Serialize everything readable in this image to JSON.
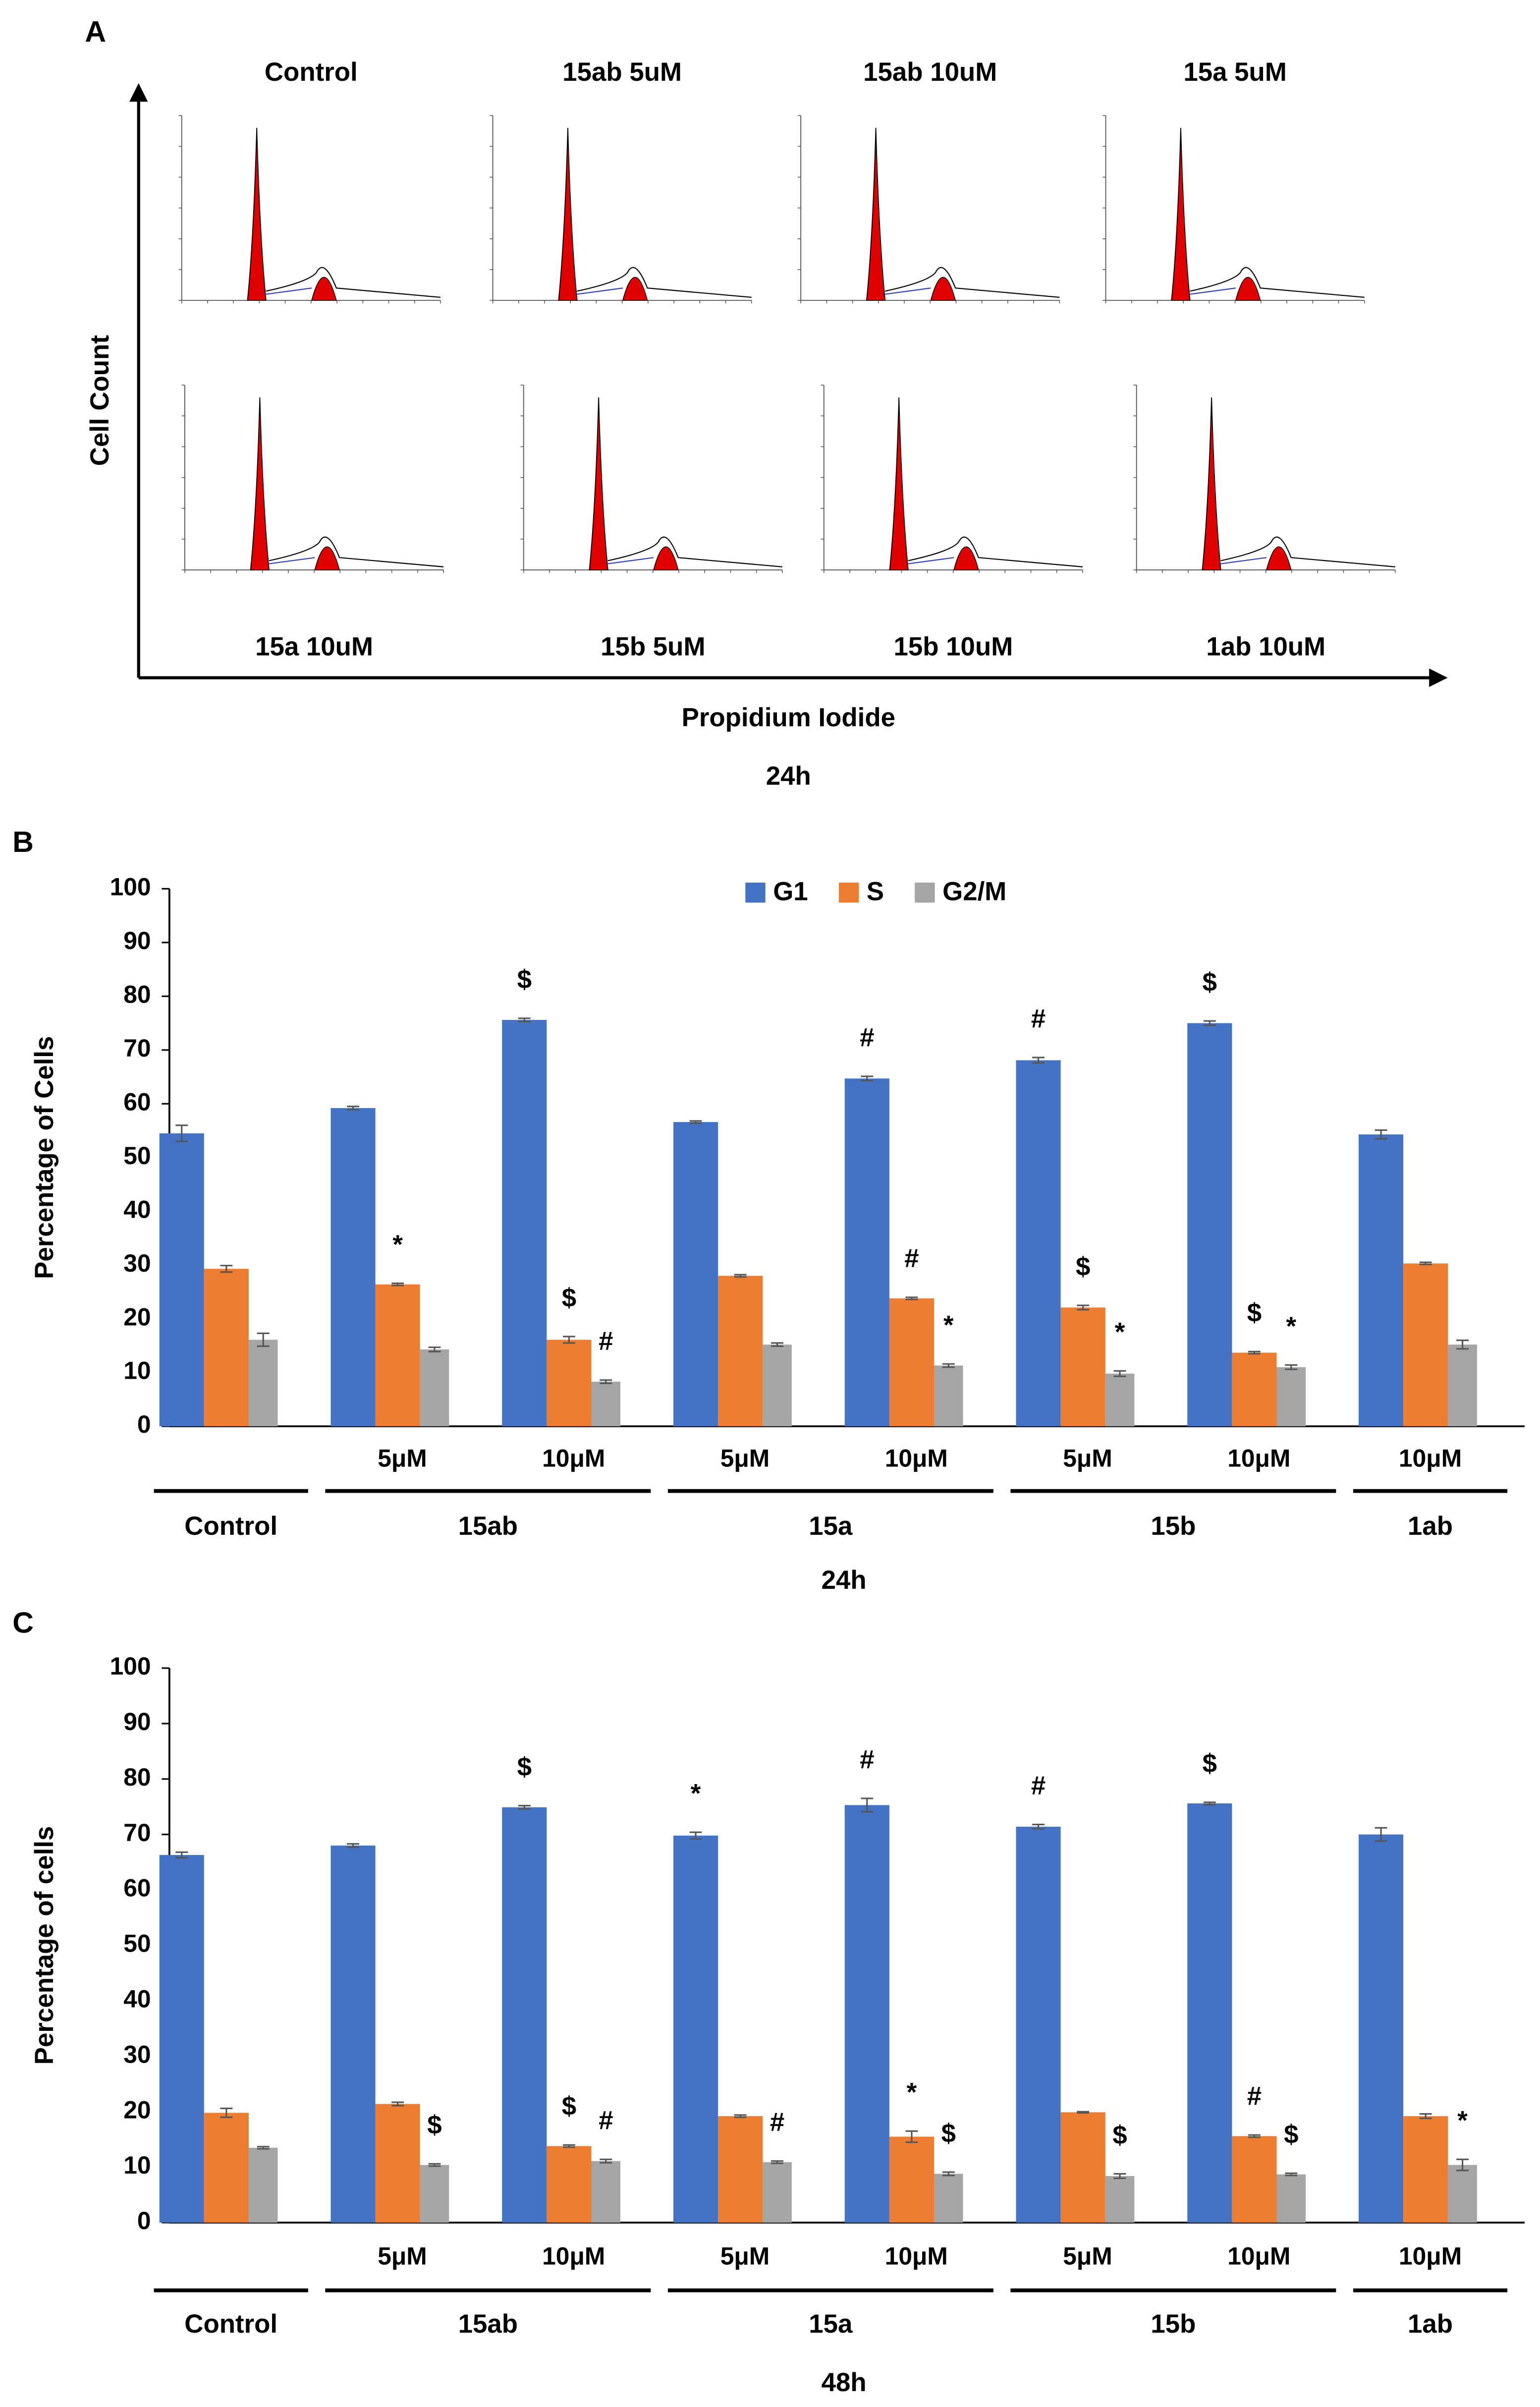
{
  "chart_data": [
    {
      "type": "flow-panel",
      "label": "A",
      "panels": [
        "Control",
        "15ab 5uM",
        "15ab 10uM",
        "15a 5uM",
        "15a 10uM",
        "15b 5uM",
        "15b 10uM",
        "1ab 10uM"
      ],
      "y_label": "Cell Count",
      "x_label": "Propidium Iodide",
      "subtitle": "24h"
    },
    {
      "type": "bar",
      "label": "B",
      "y_label": "Percentage of Cells",
      "x_label": "24h",
      "legend": true,
      "categories": [
        null,
        "5μM",
        "10μM",
        "5μM",
        "10μM",
        "5μM",
        "10μM",
        "10μM"
      ],
      "groups": [
        {
          "name": "Control",
          "size": 1
        },
        {
          "name": "15ab",
          "size": 2
        },
        {
          "name": "15a",
          "size": 2
        },
        {
          "name": "15b",
          "size": 2
        },
        {
          "name": "1ab",
          "size": 1
        }
      ],
      "ylim": [
        0,
        100
      ],
      "yticks": [
        0,
        10,
        20,
        30,
        40,
        50,
        60,
        70,
        80,
        90,
        100
      ],
      "series": [
        {
          "name": "G1",
          "color": "#4472c4",
          "values": [
            54.5,
            59.2,
            75.6,
            56.6,
            64.7,
            68.1,
            75.0,
            54.3
          ],
          "errors": [
            1.5,
            0.3,
            0.3,
            0.2,
            0.4,
            0.5,
            0.4,
            0.8
          ],
          "markers": [
            null,
            null,
            "$",
            null,
            "#",
            "#",
            "$",
            null
          ]
        },
        {
          "name": "S",
          "color": "#ed7d31",
          "values": [
            29.3,
            26.4,
            16.1,
            28.0,
            23.8,
            22.1,
            13.7,
            30.3
          ],
          "errors": [
            0.6,
            0.2,
            0.6,
            0.2,
            0.2,
            0.4,
            0.2,
            0.2
          ],
          "markers": [
            null,
            "*",
            "$",
            null,
            "#",
            "$",
            "$",
            null
          ]
        },
        {
          "name": "G2/M",
          "color": "#a5a5a5",
          "values": [
            16.1,
            14.3,
            8.3,
            15.2,
            11.3,
            9.8,
            11.0,
            15.2
          ],
          "errors": [
            1.2,
            0.4,
            0.3,
            0.3,
            0.3,
            0.5,
            0.4,
            0.8
          ],
          "markers": [
            null,
            null,
            "#",
            null,
            "*",
            "*",
            "*",
            null
          ]
        }
      ]
    },
    {
      "type": "bar",
      "label": "C",
      "y_label": "Percentage of cells",
      "x_label": "48h",
      "legend": false,
      "categories": [
        null,
        "5μM",
        "10μM",
        "5μM",
        "10μM",
        "5μM",
        "10μM",
        "10μM"
      ],
      "groups": [
        {
          "name": "Control",
          "size": 1
        },
        {
          "name": "15ab",
          "size": 2
        },
        {
          "name": "15a",
          "size": 2
        },
        {
          "name": "15b",
          "size": 2
        },
        {
          "name": "1ab",
          "size": 1
        }
      ],
      "ylim": [
        0,
        100
      ],
      "yticks": [
        0,
        10,
        20,
        30,
        40,
        50,
        60,
        70,
        80,
        90,
        100
      ],
      "series": [
        {
          "name": "G1",
          "color": "#4472c4",
          "values": [
            66.3,
            68.0,
            74.9,
            69.8,
            75.3,
            71.4,
            75.6,
            70.0
          ],
          "errors": [
            0.5,
            0.3,
            0.3,
            0.6,
            1.2,
            0.4,
            0.2,
            1.2
          ],
          "markers": [
            null,
            null,
            "$",
            "*",
            "#",
            "#",
            "$",
            null
          ]
        },
        {
          "name": "S",
          "color": "#ed7d31",
          "values": [
            19.8,
            21.4,
            13.8,
            19.2,
            15.5,
            19.9,
            15.6,
            19.2
          ],
          "errors": [
            0.8,
            0.3,
            0.2,
            0.2,
            1.0,
            0.1,
            0.2,
            0.4
          ],
          "markers": [
            null,
            null,
            "$",
            null,
            "*",
            null,
            "#",
            null
          ]
        },
        {
          "name": "G2/M",
          "color": "#a5a5a5",
          "values": [
            13.5,
            10.4,
            11.1,
            10.9,
            8.8,
            8.4,
            8.7,
            10.4
          ],
          "errors": [
            0.2,
            0.2,
            0.3,
            0.2,
            0.3,
            0.4,
            0.2,
            1.0
          ],
          "markers": [
            null,
            "$",
            "#",
            "#",
            "$",
            "$",
            "$",
            "*"
          ]
        }
      ]
    }
  ]
}
